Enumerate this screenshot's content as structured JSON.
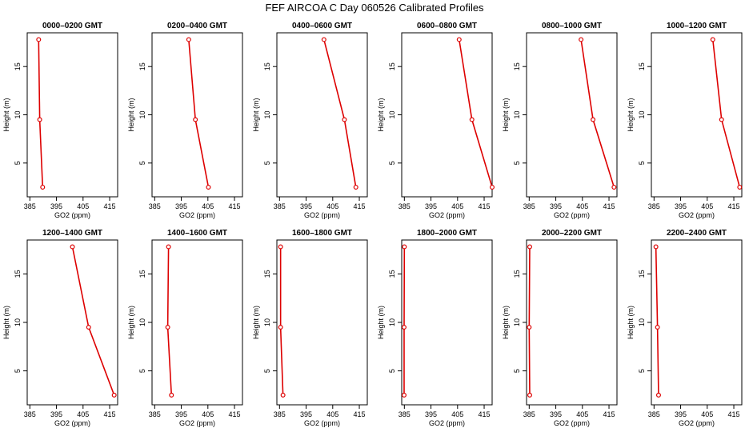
{
  "figure_title": "FEF AIRCOA C  Day 060526  Calibrated Profiles",
  "colors": {
    "line": "#dd0000",
    "marker": "#dd0000",
    "frame": "#000000"
  },
  "chart_data": [
    {
      "type": "line",
      "title": "0000–0200 GMT",
      "xlabel": "GO2 (ppm)",
      "ylabel": "Height (m)",
      "xlim": [
        384,
        418
      ],
      "ylim": [
        1.5,
        18.5
      ],
      "x_ticks": [
        385,
        395,
        405,
        415
      ],
      "y_ticks": [
        5,
        10,
        15
      ],
      "x": [
        388.3,
        388.7,
        389.8
      ],
      "y": [
        17.8,
        9.5,
        2.5
      ]
    },
    {
      "type": "line",
      "title": "0200–0400 GMT",
      "xlabel": "GO2 (ppm)",
      "ylabel": "Height (m)",
      "xlim": [
        384,
        418
      ],
      "ylim": [
        1.5,
        18.5
      ],
      "x_ticks": [
        385,
        395,
        405,
        415
      ],
      "y_ticks": [
        5,
        10,
        15
      ],
      "x": [
        397.8,
        400.3,
        405.2
      ],
      "y": [
        17.8,
        9.5,
        2.5
      ]
    },
    {
      "type": "line",
      "title": "0400–0600 GMT",
      "xlabel": "GO2 (ppm)",
      "ylabel": "Height (m)",
      "xlim": [
        384,
        418
      ],
      "ylim": [
        1.5,
        18.5
      ],
      "x_ticks": [
        385,
        395,
        405,
        415
      ],
      "y_ticks": [
        5,
        10,
        15
      ],
      "x": [
        401.7,
        409.4,
        413.7
      ],
      "y": [
        17.8,
        9.5,
        2.5
      ]
    },
    {
      "type": "line",
      "title": "0600–0800 GMT",
      "xlabel": "GO2 (ppm)",
      "ylabel": "Height (m)",
      "xlim": [
        384,
        418
      ],
      "ylim": [
        1.5,
        18.5
      ],
      "x_ticks": [
        385,
        395,
        405,
        415
      ],
      "y_ticks": [
        5,
        10,
        15
      ],
      "x": [
        405.6,
        410.4,
        418.0
      ],
      "y": [
        17.8,
        9.5,
        2.5
      ]
    },
    {
      "type": "line",
      "title": "0800–1000 GMT",
      "xlabel": "GO2 (ppm)",
      "ylabel": "Height (m)",
      "xlim": [
        384,
        418
      ],
      "ylim": [
        1.5,
        18.5
      ],
      "x_ticks": [
        385,
        395,
        405,
        415
      ],
      "y_ticks": [
        5,
        10,
        15
      ],
      "x": [
        404.5,
        409.0,
        416.9
      ],
      "y": [
        17.8,
        9.5,
        2.5
      ]
    },
    {
      "type": "line",
      "title": "1000–1200 GMT",
      "xlabel": "GO2 (ppm)",
      "ylabel": "Height (m)",
      "xlim": [
        384,
        418
      ],
      "ylim": [
        1.5,
        18.5
      ],
      "x_ticks": [
        385,
        395,
        405,
        415
      ],
      "y_ticks": [
        5,
        10,
        15
      ],
      "x": [
        407.1,
        410.4,
        417.2
      ],
      "y": [
        17.8,
        9.5,
        2.5
      ]
    },
    {
      "type": "line",
      "title": "1200–1400 GMT",
      "xlabel": "GO2 (ppm)",
      "ylabel": "Height (m)",
      "xlim": [
        384,
        418
      ],
      "ylim": [
        1.5,
        18.5
      ],
      "x_ticks": [
        385,
        395,
        405,
        415
      ],
      "y_ticks": [
        5,
        10,
        15
      ],
      "x": [
        401.0,
        407.1,
        416.7
      ],
      "y": [
        17.8,
        9.5,
        2.5
      ]
    },
    {
      "type": "line",
      "title": "1400–1600 GMT",
      "xlabel": "GO2 (ppm)",
      "ylabel": "Height (m)",
      "xlim": [
        384,
        418
      ],
      "ylim": [
        1.5,
        18.5
      ],
      "x_ticks": [
        385,
        395,
        405,
        415
      ],
      "y_ticks": [
        5,
        10,
        15
      ],
      "x": [
        390.2,
        389.9,
        391.3
      ],
      "y": [
        17.8,
        9.5,
        2.5
      ]
    },
    {
      "type": "line",
      "title": "1600–1800 GMT",
      "xlabel": "GO2 (ppm)",
      "ylabel": "Height (m)",
      "xlim": [
        384,
        418
      ],
      "ylim": [
        1.5,
        18.5
      ],
      "x_ticks": [
        385,
        395,
        405,
        415
      ],
      "y_ticks": [
        5,
        10,
        15
      ],
      "x": [
        385.4,
        385.4,
        386.3
      ],
      "y": [
        17.8,
        9.5,
        2.5
      ]
    },
    {
      "type": "line",
      "title": "1800–2000 GMT",
      "xlabel": "GO2 (ppm)",
      "ylabel": "Height (m)",
      "xlim": [
        384,
        418
      ],
      "ylim": [
        1.5,
        18.5
      ],
      "x_ticks": [
        385,
        395,
        405,
        415
      ],
      "y_ticks": [
        5,
        10,
        15
      ],
      "x": [
        385.0,
        384.9,
        384.9
      ],
      "y": [
        17.8,
        9.5,
        2.5
      ]
    },
    {
      "type": "line",
      "title": "2000–2200 GMT",
      "xlabel": "GO2 (ppm)",
      "ylabel": "Height (m)",
      "xlim": [
        384,
        418
      ],
      "ylim": [
        1.5,
        18.5
      ],
      "x_ticks": [
        385,
        395,
        405,
        415
      ],
      "y_ticks": [
        5,
        10,
        15
      ],
      "x": [
        385.2,
        385.0,
        385.2
      ],
      "y": [
        17.8,
        9.5,
        2.5
      ]
    },
    {
      "type": "line",
      "title": "2200–2400 GMT",
      "xlabel": "GO2 (ppm)",
      "ylabel": "Height (m)",
      "xlim": [
        384,
        418
      ],
      "ylim": [
        1.5,
        18.5
      ],
      "x_ticks": [
        385,
        395,
        405,
        415
      ],
      "y_ticks": [
        5,
        10,
        15
      ],
      "x": [
        385.7,
        386.3,
        386.7
      ],
      "y": [
        17.8,
        9.5,
        2.5
      ]
    }
  ]
}
